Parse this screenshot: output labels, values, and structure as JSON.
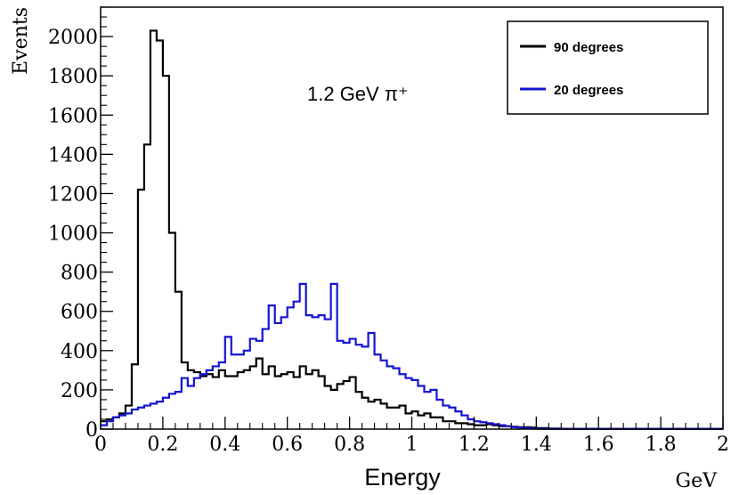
{
  "chart_data": {
    "type": "line",
    "step": true,
    "annotation": "1.2 GeV π⁺",
    "xlabel": "Energy",
    "x_unit_label": "GeV",
    "ylabel": "Events",
    "xlim": [
      0,
      2
    ],
    "ylim": [
      0,
      2150
    ],
    "xticks": [
      0,
      0.2,
      0.4,
      0.6,
      0.8,
      1,
      1.2,
      1.4,
      1.6,
      1.8,
      2
    ],
    "xtick_labels": [
      "0",
      "0.2",
      "0.4",
      "0.6",
      "0.8",
      "1",
      "1.2",
      "1.4",
      "1.6",
      "1.8",
      "2"
    ],
    "yticks": [
      0,
      200,
      400,
      600,
      800,
      1000,
      1200,
      1400,
      1600,
      1800,
      2000
    ],
    "ytick_labels": [
      "0",
      "200",
      "400",
      "600",
      "800",
      "1000",
      "1200",
      "1400",
      "1600",
      "1800",
      "2000"
    ],
    "legend_position": "top-right",
    "bin_width": 0.02,
    "series": [
      {
        "name": "90 degrees",
        "color": "#000000",
        "values": [
          40,
          50,
          60,
          80,
          120,
          330,
          1220,
          1450,
          2030,
          1980,
          1800,
          1000,
          700,
          340,
          300,
          290,
          270,
          280,
          265,
          300,
          270,
          270,
          290,
          300,
          320,
          360,
          280,
          320,
          270,
          280,
          290,
          265,
          320,
          280,
          300,
          270,
          220,
          200,
          230,
          245,
          265,
          190,
          160,
          140,
          150,
          130,
          110,
          110,
          120,
          80,
          90,
          70,
          80,
          60,
          60,
          40,
          40,
          30,
          30,
          25,
          20,
          20,
          25,
          20,
          15,
          15,
          12,
          10,
          10,
          8,
          5,
          5,
          3,
          3,
          2,
          2,
          1,
          1,
          1,
          1,
          1,
          1,
          1,
          1,
          1,
          1,
          1,
          1,
          1,
          1,
          1,
          1,
          1,
          1,
          1,
          1,
          1,
          1,
          1,
          1
        ]
      },
      {
        "name": "20 degrees",
        "color": "#1414d2",
        "values": [
          20,
          40,
          60,
          70,
          80,
          100,
          110,
          120,
          130,
          140,
          160,
          180,
          190,
          260,
          220,
          260,
          280,
          300,
          320,
          340,
          470,
          380,
          380,
          400,
          460,
          450,
          510,
          630,
          540,
          570,
          620,
          650,
          740,
          580,
          570,
          580,
          560,
          740,
          450,
          440,
          460,
          430,
          420,
          490,
          380,
          350,
          320,
          310,
          280,
          260,
          250,
          220,
          190,
          200,
          150,
          120,
          110,
          90,
          70,
          50,
          40,
          35,
          30,
          25,
          20,
          15,
          10,
          8,
          5,
          3,
          2,
          1,
          1,
          1,
          1,
          1,
          1,
          1,
          1,
          1,
          1,
          1,
          1,
          1,
          1,
          1,
          1,
          1,
          1,
          1,
          1,
          1,
          1,
          1,
          1,
          1,
          1,
          1,
          1,
          1
        ]
      }
    ]
  }
}
